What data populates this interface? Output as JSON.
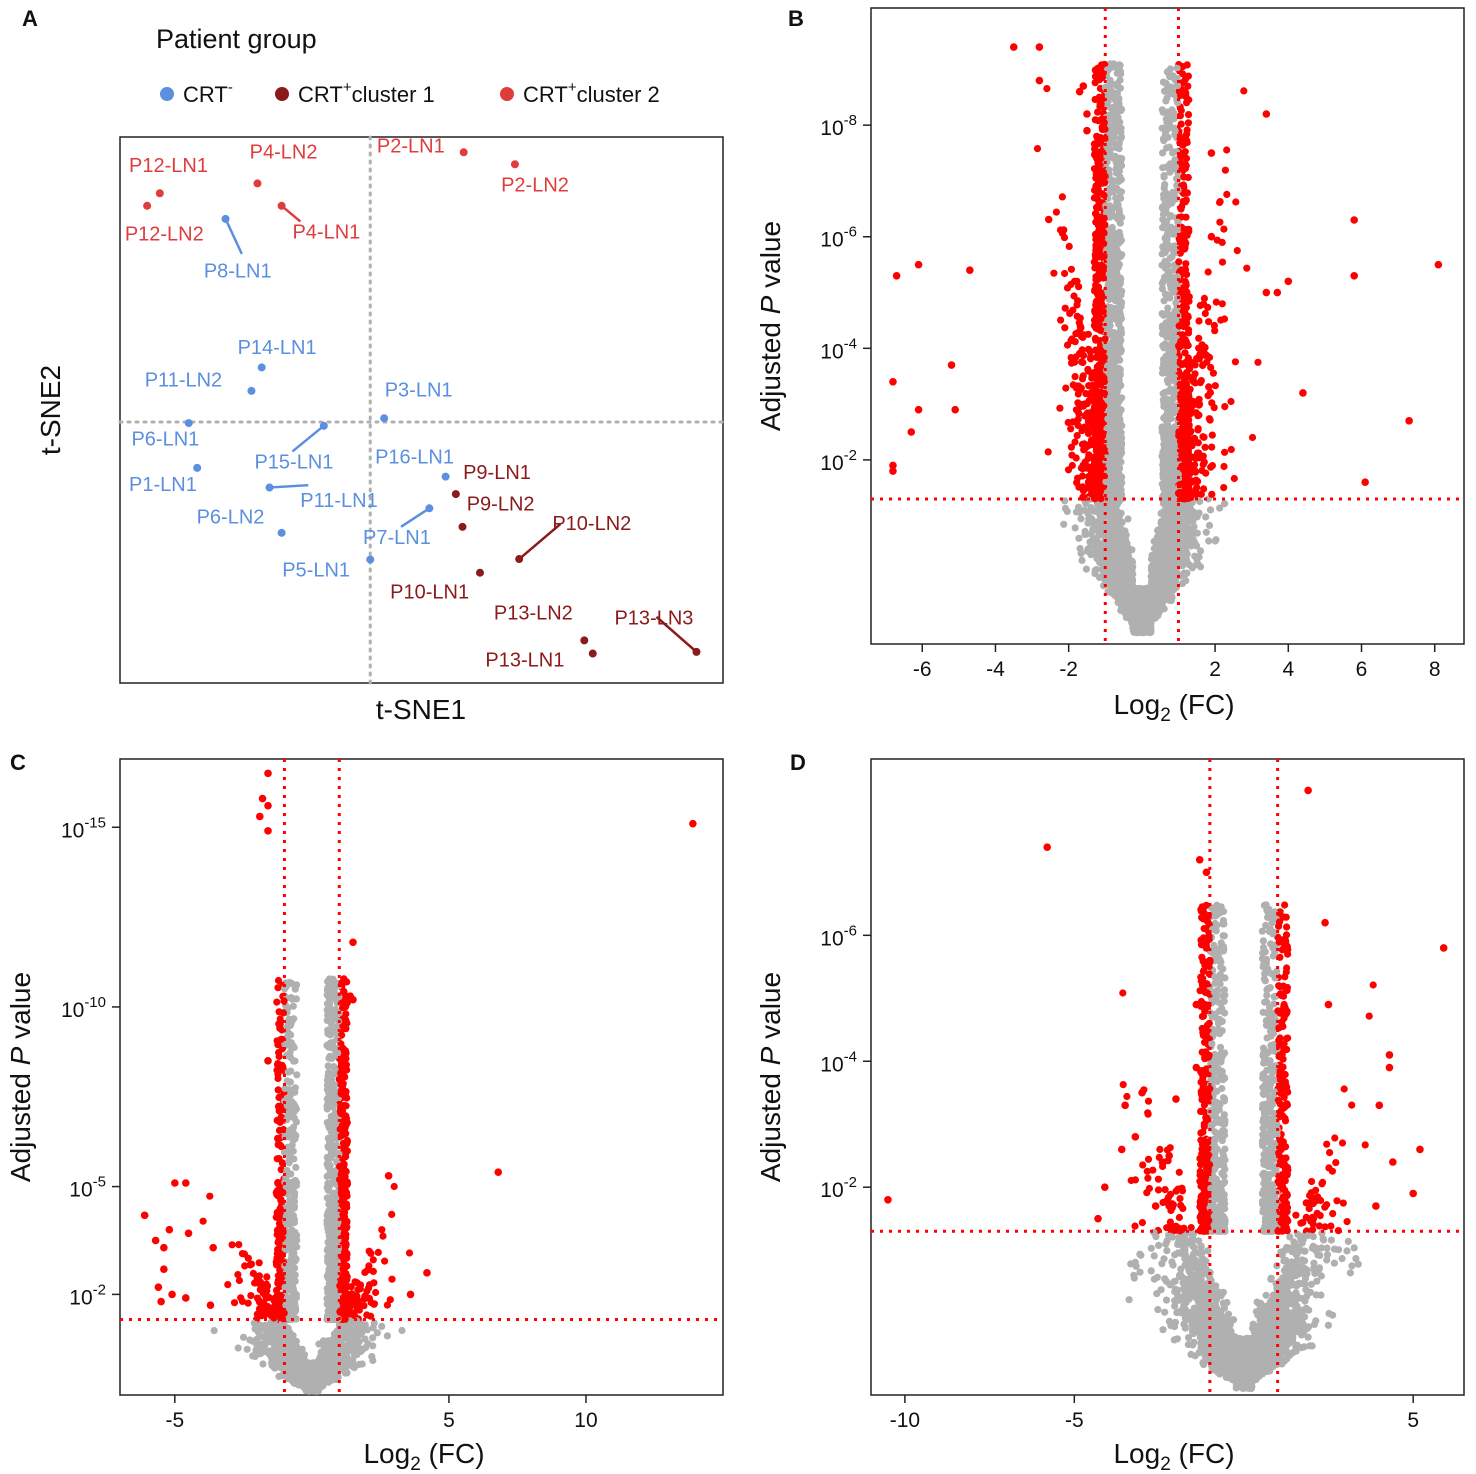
{
  "colors": {
    "crt_neg": "#5b8fe0",
    "cluster1": "#8b1a1a",
    "cluster2": "#e03c3c",
    "sig": "#ff0000",
    "nonsig": "#b0b0b0",
    "guide": "#b0b0b0",
    "threshold": "#ff0000"
  },
  "panel_letters": [
    "A",
    "B",
    "C",
    "D"
  ],
  "chart_data": [
    {
      "panel": "A",
      "type": "scatter",
      "title": "",
      "xlabel": "t-SNE1",
      "ylabel": "t-SNE2",
      "xlim": [
        0,
        100
      ],
      "ylim": [
        0,
        100
      ],
      "legend": {
        "title": "Patient group",
        "placement": "top",
        "entries": [
          {
            "group": "crt_neg",
            "base": "CRT",
            "sup": "-",
            "suffix": ""
          },
          {
            "group": "cluster1",
            "base": "CRT",
            "sup": "+",
            "suffix": "cluster 1"
          },
          {
            "group": "cluster2",
            "base": "CRT",
            "sup": "+",
            "suffix": "cluster 2"
          }
        ]
      },
      "guides": {
        "x": 41.5,
        "y": 47.8
      },
      "points": [
        {
          "label": "P12-LN1",
          "group": "cluster2",
          "x": 6.6,
          "y": 89.7,
          "lx": 1.5,
          "ly": 93.6
        },
        {
          "label": "P12-LN2",
          "group": "cluster2",
          "x": 4.5,
          "y": 87.4,
          "lx": 0.8,
          "ly": 81.0
        },
        {
          "label": "P4-LN2",
          "group": "cluster2",
          "x": 22.8,
          "y": 91.5,
          "lx": 21.5,
          "ly": 96.1
        },
        {
          "label": "P4-LN1",
          "group": "cluster2",
          "x": 26.8,
          "y": 87.4,
          "lx": 28.6,
          "ly": 81.4,
          "line": true
        },
        {
          "label": "P2-LN1",
          "group": "cluster2",
          "x": 57.0,
          "y": 97.2,
          "lx": 42.6,
          "ly": 97.2
        },
        {
          "label": "P2-LN2",
          "group": "cluster2",
          "x": 65.5,
          "y": 95.0,
          "lx": 63.2,
          "ly": 90.0
        },
        {
          "label": "P8-LN1",
          "group": "crt_neg",
          "x": 17.5,
          "y": 85.0,
          "lx": 13.9,
          "ly": 74.3,
          "line": true
        },
        {
          "label": "P14-LN1",
          "group": "crt_neg",
          "x": 23.5,
          "y": 57.8,
          "lx": 19.5,
          "ly": 60.3
        },
        {
          "label": "P11-LN2",
          "group": "crt_neg",
          "x": 21.8,
          "y": 53.5,
          "lx": 4.1,
          "ly": 54.3
        },
        {
          "label": "P3-LN1",
          "group": "crt_neg",
          "x": 43.8,
          "y": 48.5,
          "lx": 43.9,
          "ly": 52.5
        },
        {
          "label": "P6-LN1",
          "group": "crt_neg",
          "x": 11.4,
          "y": 47.6,
          "lx": 1.9,
          "ly": 43.5
        },
        {
          "label": "P15-LN1",
          "group": "crt_neg",
          "x": 33.8,
          "y": 47.1,
          "lx": 22.3,
          "ly": 39.3,
          "line": true
        },
        {
          "label": "P16-LN1",
          "group": "crt_neg",
          "x": 54.0,
          "y": 37.8,
          "lx": 42.3,
          "ly": 40.2
        },
        {
          "label": "P1-LN1",
          "group": "crt_neg",
          "x": 12.8,
          "y": 39.4,
          "lx": 1.5,
          "ly": 35.2
        },
        {
          "label": "P11-LN1",
          "group": "crt_neg",
          "x": 24.8,
          "y": 35.8,
          "lx": 29.9,
          "ly": 32.2,
          "line": true
        },
        {
          "label": "P6-LN2",
          "group": "crt_neg",
          "x": 26.8,
          "y": 27.5,
          "lx": 12.7,
          "ly": 29.2
        },
        {
          "label": "P7-LN1",
          "group": "crt_neg",
          "x": 51.3,
          "y": 32.0,
          "lx": 40.3,
          "ly": 25.5,
          "line": true
        },
        {
          "label": "P5-LN1",
          "group": "crt_neg",
          "x": 41.5,
          "y": 22.6,
          "lx": 26.9,
          "ly": 19.5
        },
        {
          "label": "P9-LN1",
          "group": "cluster1",
          "x": 55.7,
          "y": 34.6,
          "lx": 56.9,
          "ly": 37.4
        },
        {
          "label": "P9-LN2",
          "group": "cluster1",
          "x": 56.8,
          "y": 28.6,
          "lx": 57.5,
          "ly": 31.6
        },
        {
          "label": "P10-LN2",
          "group": "cluster1",
          "x": 66.2,
          "y": 22.7,
          "lx": 71.7,
          "ly": 28.0,
          "line": true
        },
        {
          "label": "P10-LN1",
          "group": "cluster1",
          "x": 59.7,
          "y": 20.2,
          "lx": 44.8,
          "ly": 15.5
        },
        {
          "label": "P13-LN2",
          "group": "cluster1",
          "x": 77.0,
          "y": 7.8,
          "lx": 62.0,
          "ly": 11.6
        },
        {
          "label": "P13-LN1",
          "group": "cluster1",
          "x": 78.4,
          "y": 5.4,
          "lx": 60.6,
          "ly": 3.0
        },
        {
          "label": "P13-LN3",
          "group": "cluster1",
          "x": 95.6,
          "y": 5.7,
          "lx": 82.0,
          "ly": 10.7,
          "line": true
        }
      ]
    },
    {
      "panel": "B",
      "type": "scatter",
      "subtype": "volcano",
      "xlabel": "Log2 (FC)",
      "ylabel": "Adjusted P value",
      "xlim": [
        -7.4,
        8.8
      ],
      "ylim": [
        -1.3,
        10.1
      ],
      "xticks": [
        -6,
        -4,
        -2,
        2,
        4,
        6,
        8
      ],
      "xtick_labels": [
        "-6",
        "-4",
        "-2",
        "2",
        "4",
        "6",
        "8"
      ],
      "yticks": [
        2,
        4,
        6,
        8
      ],
      "ytick_labels": [
        "10-2",
        "10-4",
        "10-6",
        "10-8"
      ],
      "fc_threshold": 1,
      "p_threshold_log": 1.3,
      "highlight_points": [
        {
          "x": -3.5,
          "y": 9.4
        },
        {
          "x": -2.8,
          "y": 9.4
        },
        {
          "x": -2.8,
          "y": 8.8
        },
        {
          "x": -1.6,
          "y": 8.7
        },
        {
          "x": -1.7,
          "y": 8.6
        },
        {
          "x": -1.5,
          "y": 8.2
        },
        {
          "x": -1.5,
          "y": 7.9
        },
        {
          "x": 3.4,
          "y": 8.2
        },
        {
          "x": 1.9,
          "y": 7.5
        },
        {
          "x": 1.1,
          "y": 7.3
        },
        {
          "x": 5.8,
          "y": 6.3
        },
        {
          "x": 1.9,
          "y": 6.0
        },
        {
          "x": -6.1,
          "y": 5.5
        },
        {
          "x": -6.7,
          "y": 5.3
        },
        {
          "x": -4.7,
          "y": 5.4
        },
        {
          "x": 5.8,
          "y": 5.3
        },
        {
          "x": 8.1,
          "y": 5.5
        },
        {
          "x": 4.0,
          "y": 5.2
        },
        {
          "x": 3.7,
          "y": 5.0
        },
        {
          "x": 3.4,
          "y": 5.0
        },
        {
          "x": -5.2,
          "y": 3.7
        },
        {
          "x": -6.8,
          "y": 3.4
        },
        {
          "x": 4.4,
          "y": 3.2
        },
        {
          "x": -6.1,
          "y": 2.9
        },
        {
          "x": -5.1,
          "y": 2.9
        },
        {
          "x": 7.3,
          "y": 2.7
        },
        {
          "x": -6.3,
          "y": 2.5
        },
        {
          "x": -6.8,
          "y": 1.9
        },
        {
          "x": -6.8,
          "y": 1.8
        },
        {
          "x": 6.1,
          "y": 1.6
        }
      ]
    },
    {
      "panel": "C",
      "type": "scatter",
      "subtype": "volcano",
      "xlabel": "Log2 (FC)",
      "ylabel": "Adjusted P value",
      "xlim": [
        -7,
        15
      ],
      "ylim": [
        -0.8,
        16.9
      ],
      "xticks": [
        -5,
        5,
        10
      ],
      "xtick_labels": [
        "-5",
        "5",
        "10"
      ],
      "yticks": [
        2,
        5,
        10,
        15
      ],
      "ytick_labels": [
        "10-2",
        "10-5",
        "10-10",
        "10-15"
      ],
      "fc_threshold": 1,
      "p_threshold_log": 1.3,
      "highlight_points": [
        {
          "x": -1.6,
          "y": 16.5
        },
        {
          "x": -1.8,
          "y": 15.8
        },
        {
          "x": -1.6,
          "y": 15.6
        },
        {
          "x": -1.9,
          "y": 15.3
        },
        {
          "x": -1.6,
          "y": 14.9
        },
        {
          "x": 13.9,
          "y": 15.1
        },
        {
          "x": 1.5,
          "y": 11.8
        },
        {
          "x": 1.4,
          "y": 10.3
        },
        {
          "x": 1.5,
          "y": 10.2
        },
        {
          "x": -1.6,
          "y": 8.5
        },
        {
          "x": 6.8,
          "y": 5.4
        },
        {
          "x": 2.8,
          "y": 5.3
        },
        {
          "x": -5.0,
          "y": 5.1
        },
        {
          "x": -4.6,
          "y": 5.1
        },
        {
          "x": -6.1,
          "y": 4.2
        },
        {
          "x": -5.2,
          "y": 3.8
        },
        {
          "x": -4.5,
          "y": 3.7
        },
        {
          "x": -5.7,
          "y": 3.5
        },
        {
          "x": -5.4,
          "y": 3.3
        },
        {
          "x": -5.4,
          "y": 2.7
        },
        {
          "x": -3.6,
          "y": 3.3
        },
        {
          "x": -5.6,
          "y": 2.2
        },
        {
          "x": 4.2,
          "y": 2.6
        },
        {
          "x": -5.1,
          "y": 2.0
        },
        {
          "x": -4.6,
          "y": 1.9
        },
        {
          "x": -5.5,
          "y": 1.8
        },
        {
          "x": 3.6,
          "y": 2.0
        },
        {
          "x": -3.7,
          "y": 1.7
        }
      ]
    },
    {
      "panel": "D",
      "type": "scatter",
      "subtype": "volcano",
      "xlabel": "Log2 (FC)",
      "ylabel": "Adjusted P value",
      "xlim": [
        -11,
        6.5
      ],
      "ylim": [
        -1.3,
        8.8
      ],
      "xticks": [
        -10,
        -5,
        5
      ],
      "xtick_labels": [
        "-10",
        "-5",
        "5"
      ],
      "yticks": [
        2,
        4,
        6
      ],
      "ytick_labels": [
        "10-2",
        "10-4",
        "10-6"
      ],
      "fc_threshold": 1,
      "p_threshold_log": 1.3,
      "highlight_points": [
        {
          "x": 1.9,
          "y": 8.3
        },
        {
          "x": -5.8,
          "y": 7.4
        },
        {
          "x": -1.3,
          "y": 7.2
        },
        {
          "x": -1.1,
          "y": 7.0
        },
        {
          "x": 2.4,
          "y": 6.2
        },
        {
          "x": 5.9,
          "y": 5.8
        },
        {
          "x": -1.1,
          "y": 5.8
        },
        {
          "x": -1.0,
          "y": 5.6
        },
        {
          "x": -1.4,
          "y": 4.9
        },
        {
          "x": 2.5,
          "y": 4.9
        },
        {
          "x": 4.3,
          "y": 4.1
        },
        {
          "x": 4.3,
          "y": 3.9
        },
        {
          "x": -1.4,
          "y": 3.9
        },
        {
          "x": -3.0,
          "y": 3.5
        },
        {
          "x": -2.0,
          "y": 3.4
        },
        {
          "x": -3.5,
          "y": 3.3
        },
        {
          "x": 4.0,
          "y": 3.3
        },
        {
          "x": -3.2,
          "y": 2.8
        },
        {
          "x": 5.2,
          "y": 2.6
        },
        {
          "x": -3.6,
          "y": 2.6
        },
        {
          "x": -2.2,
          "y": 2.5
        },
        {
          "x": 4.4,
          "y": 2.4
        },
        {
          "x": -4.1,
          "y": 2.0
        },
        {
          "x": 5.0,
          "y": 1.9
        },
        {
          "x": -10.5,
          "y": 1.8
        },
        {
          "x": 3.9,
          "y": 1.7
        },
        {
          "x": -4.3,
          "y": 1.5
        },
        {
          "x": -2.6,
          "y": 1.7
        }
      ]
    }
  ]
}
